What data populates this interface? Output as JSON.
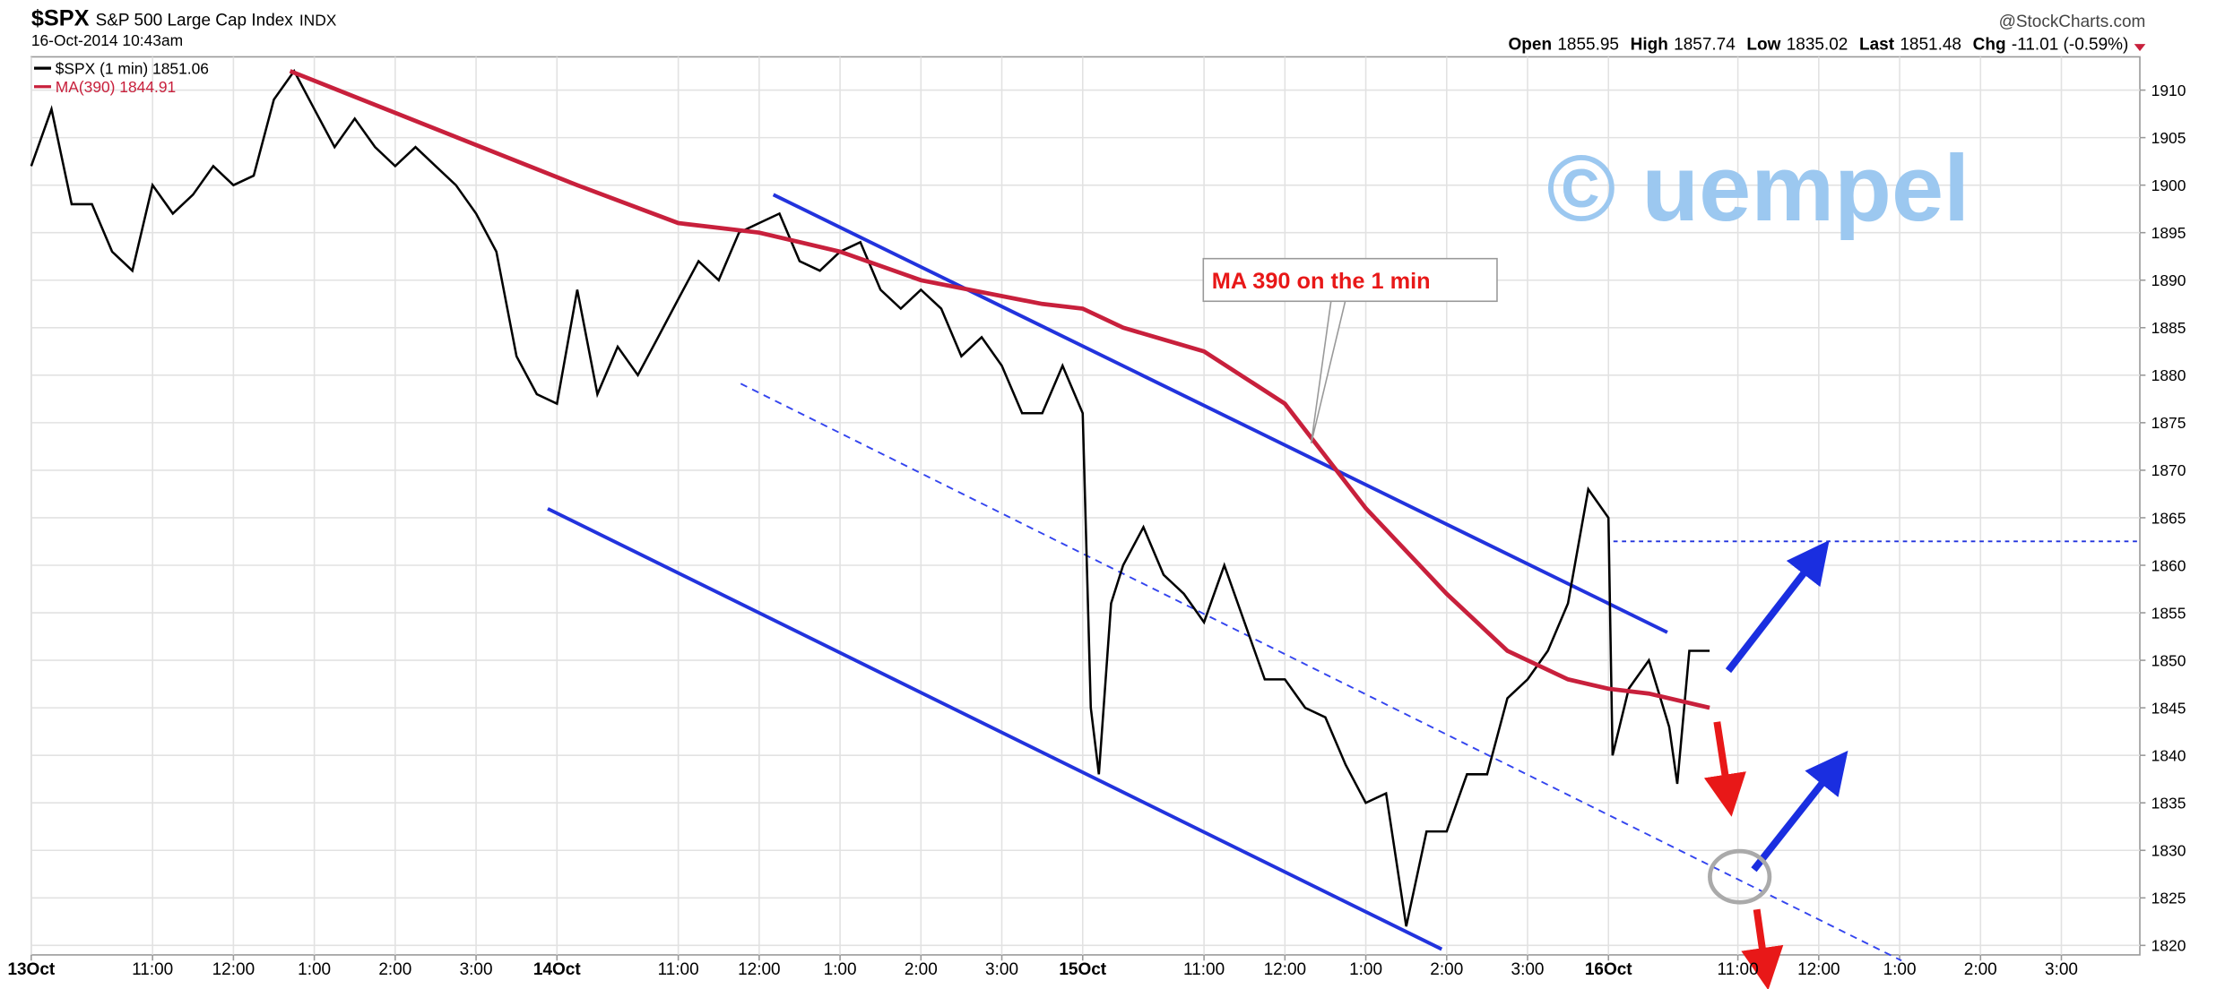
{
  "chart_data": {
    "type": "line",
    "title": "$SPX",
    "subtitle": "S&P 500 Large Cap Index",
    "exchange": "INDX",
    "date": "16-Oct-2014 10:43am",
    "source": "@StockCharts.com",
    "stats": [
      {
        "label": "Open",
        "value": 1855.95
      },
      {
        "label": "High",
        "value": 1857.74
      },
      {
        "label": "Low",
        "value": 1835.02
      },
      {
        "label": "Last",
        "value": 1851.48
      },
      {
        "label": "Chg",
        "value": "-11.01 (-0.59%)"
      }
    ],
    "watermark": "© uempel",
    "annotation": "MA 390 on the 1 min",
    "series": [
      {
        "name": "$SPX (1 min) 1851.06",
        "color": "#000000",
        "x": [
          0,
          0.25,
          0.5,
          0.75,
          1,
          1.25,
          1.5,
          1.75,
          2,
          2.25,
          2.5,
          2.75,
          3,
          3.25,
          3.5,
          3.75,
          4,
          4.25,
          4.5,
          4.75,
          5,
          5.25,
          5.5,
          5.75,
          6,
          6.25,
          6.5,
          6.75,
          7,
          7.25,
          7.5,
          7.75,
          8,
          8.25,
          8.5,
          8.75,
          9,
          9.25,
          9.5,
          9.75,
          10,
          10.25,
          10.5,
          10.75,
          11,
          11.25,
          11.5,
          11.75,
          12,
          12.25,
          12.5,
          12.75,
          13,
          13.1,
          13.2,
          13.35,
          13.5,
          13.75,
          14,
          14.25,
          14.5,
          14.75,
          15,
          15.25,
          15.5,
          15.75,
          16,
          16.25,
          16.5,
          16.75,
          17,
          17.25,
          17.5,
          17.75,
          18,
          18.25,
          18.5,
          18.75,
          19,
          19.25,
          19.5,
          19.55,
          19.75,
          20,
          20.25,
          20.35,
          20.5,
          20.75
        ],
        "values": [
          1902,
          1908,
          1898,
          1898,
          1893,
          1891,
          1900,
          1897,
          1899,
          1902,
          1900,
          1901,
          1909,
          1912,
          1908,
          1904,
          1907,
          1904,
          1902,
          1904,
          1902,
          1900,
          1897,
          1893,
          1882,
          1878,
          1877,
          1889,
          1878,
          1883,
          1880,
          1884,
          1888,
          1892,
          1890,
          1895,
          1896,
          1897,
          1892,
          1891,
          1893,
          1894,
          1889,
          1887,
          1889,
          1887,
          1882,
          1884,
          1881,
          1876,
          1876,
          1881,
          1876,
          1845,
          1838,
          1856,
          1860,
          1864,
          1859,
          1857,
          1854,
          1860,
          1854,
          1848,
          1848,
          1845,
          1844,
          1839,
          1835,
          1836,
          1822,
          1832,
          1832,
          1838,
          1838,
          1846,
          1848,
          1851,
          1856,
          1868,
          1865,
          1840,
          1847,
          1850,
          1843,
          1837,
          1851,
          1851
        ]
      },
      {
        "name": "MA(390) 1844.91",
        "color": "#c8203c",
        "x": [
          3.2,
          6.75,
          8,
          9,
          10,
          11,
          12.5,
          13,
          13.5,
          14.5,
          15.5,
          16.5,
          17.5,
          18.25,
          19,
          19.5,
          20,
          20.75
        ],
        "values": [
          1912,
          1900,
          1896,
          1895,
          1893,
          1890,
          1887.5,
          1887,
          1885,
          1882.5,
          1877,
          1866,
          1857,
          1851,
          1848,
          1847,
          1846.5,
          1845
        ]
      }
    ],
    "xlim": [
      0,
      26.07
    ],
    "xticks": [
      {
        "value": 0,
        "label": "13Oct"
      },
      {
        "value": 1.5,
        "label": "11:00"
      },
      {
        "value": 2.5,
        "label": "12:00"
      },
      {
        "value": 3.5,
        "label": "1:00"
      },
      {
        "value": 4.5,
        "label": "2:00"
      },
      {
        "value": 5.5,
        "label": "3:00"
      },
      {
        "value": 6.5,
        "label": "14Oct"
      },
      {
        "value": 8,
        "label": "11:00"
      },
      {
        "value": 9,
        "label": "12:00"
      },
      {
        "value": 10,
        "label": "1:00"
      },
      {
        "value": 11,
        "label": "2:00"
      },
      {
        "value": 12,
        "label": "3:00"
      },
      {
        "value": 13,
        "label": "15Oct"
      },
      {
        "value": 14.5,
        "label": "11:00"
      },
      {
        "value": 15.5,
        "label": "12:00"
      },
      {
        "value": 16.5,
        "label": "1:00"
      },
      {
        "value": 17.5,
        "label": "2:00"
      },
      {
        "value": 18.5,
        "label": "3:00"
      },
      {
        "value": 19.5,
        "label": "16Oct"
      },
      {
        "value": 21.1,
        "label": "11:00"
      },
      {
        "value": 22.1,
        "label": "12:00"
      },
      {
        "value": 23.1,
        "label": "1:00"
      },
      {
        "value": 24.1,
        "label": "2:00"
      },
      {
        "value": 25.1,
        "label": "3:00"
      }
    ],
    "ylim": [
      1819,
      1913.5
    ],
    "yticks": [
      1820,
      1825,
      1830,
      1835,
      1840,
      1845,
      1850,
      1855,
      1860,
      1865,
      1870,
      1875,
      1880,
      1885,
      1890,
      1895,
      1900,
      1905,
      1910
    ],
    "grid": true
  }
}
